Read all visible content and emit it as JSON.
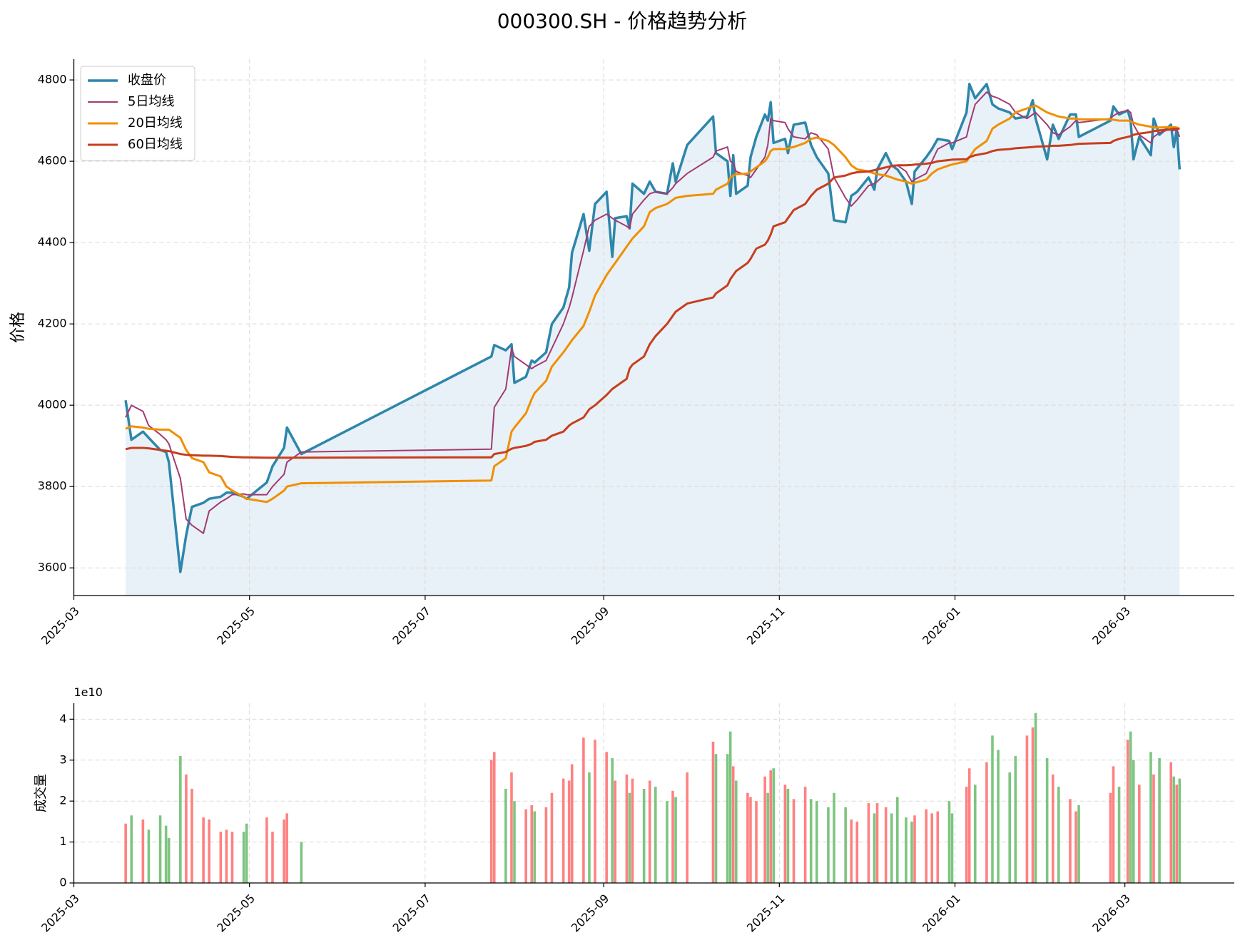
{
  "chart_data": [
    {
      "type": "line",
      "title": "000300.SH - 价格趋势分析",
      "ylabel": "价格",
      "x": [
        "2025-03-19",
        "2025-03-21",
        "2025-03-25",
        "2025-03-27",
        "2025-03-31",
        "2025-04-02",
        "2025-04-03",
        "2025-04-07",
        "2025-04-09",
        "2025-04-11",
        "2025-04-15",
        "2025-04-17",
        "2025-04-21",
        "2025-04-23",
        "2025-04-25",
        "2025-04-29",
        "2025-04-30",
        "2025-05-07",
        "2025-05-09",
        "2025-05-13",
        "2025-05-14",
        "2025-05-19",
        "2025-07-24",
        "2025-07-25",
        "2025-07-29",
        "2025-07-31",
        "2025-08-01",
        "2025-08-05",
        "2025-08-07",
        "2025-08-08",
        "2025-08-12",
        "2025-08-14",
        "2025-08-18",
        "2025-08-20",
        "2025-08-21",
        "2025-08-25",
        "2025-08-27",
        "2025-08-29",
        "2025-09-02",
        "2025-09-04",
        "2025-09-05",
        "2025-09-09",
        "2025-09-10",
        "2025-09-11",
        "2025-09-15",
        "2025-09-17",
        "2025-09-19",
        "2025-09-23",
        "2025-09-25",
        "2025-09-26",
        "2025-09-30",
        "2025-10-09",
        "2025-10-10",
        "2025-10-14",
        "2025-10-15",
        "2025-10-16",
        "2025-10-17",
        "2025-10-21",
        "2025-10-22",
        "2025-10-24",
        "2025-10-27",
        "2025-10-28",
        "2025-10-29",
        "2025-10-30",
        "2025-11-03",
        "2025-11-04",
        "2025-11-06",
        "2025-11-10",
        "2025-11-12",
        "2025-11-14",
        "2025-11-18",
        "2025-11-20",
        "2025-11-24",
        "2025-11-26",
        "2025-11-28",
        "2025-12-02",
        "2025-12-04",
        "2025-12-05",
        "2025-12-08",
        "2025-12-10",
        "2025-12-12",
        "2025-12-15",
        "2025-12-17",
        "2025-12-18",
        "2025-12-22",
        "2025-12-24",
        "2025-12-26",
        "2025-12-30",
        "2025-12-31",
        "2026-01-05",
        "2026-01-06",
        "2026-01-08",
        "2026-01-12",
        "2026-01-14",
        "2026-01-16",
        "2026-01-20",
        "2026-01-22",
        "2026-01-26",
        "2026-01-28",
        "2026-01-29",
        "2026-02-02",
        "2026-02-04",
        "2026-02-06",
        "2026-02-10",
        "2026-02-12",
        "2026-02-13",
        "2026-02-24",
        "2026-02-25",
        "2026-02-27",
        "2026-03-02",
        "2026-03-03",
        "2026-03-04",
        "2026-03-06",
        "2026-03-10",
        "2026-03-11",
        "2026-03-13",
        "2026-03-17",
        "2026-03-18",
        "2026-03-19",
        "2026-03-20"
      ],
      "series": [
        {
          "name": "收盘价",
          "color": "#2e86ab",
          "width": 3.5,
          "fill": "#e8f1f7",
          "values": [
            4012,
            3915,
            3935,
            3920,
            3890,
            3885,
            3860,
            3590,
            3680,
            3750,
            3760,
            3770,
            3775,
            3785,
            3785,
            3775,
            3770,
            3810,
            3850,
            3895,
            3945,
            3880,
            4120,
            4148,
            4135,
            4150,
            4055,
            4070,
            4110,
            4105,
            4130,
            4200,
            4240,
            4290,
            4375,
            4470,
            4380,
            4495,
            4525,
            4365,
            4460,
            4465,
            4435,
            4545,
            4520,
            4550,
            4525,
            4520,
            4595,
            4550,
            4640,
            4710,
            4620,
            4600,
            4515,
            4615,
            4520,
            4540,
            4610,
            4660,
            4715,
            4700,
            4745,
            4645,
            4655,
            4620,
            4690,
            4695,
            4640,
            4610,
            4570,
            4455,
            4450,
            4515,
            4525,
            4560,
            4530,
            4580,
            4620,
            4590,
            4580,
            4550,
            4495,
            4575,
            4610,
            4630,
            4655,
            4650,
            4630,
            4720,
            4790,
            4755,
            4790,
            4740,
            4730,
            4720,
            4705,
            4710,
            4750,
            4705,
            4605,
            4690,
            4655,
            4715,
            4715,
            4660,
            4700,
            4735,
            4715,
            4725,
            4700,
            4605,
            4660,
            4615,
            4705,
            4665,
            4690,
            4635,
            4680,
            4580
          ]
        },
        {
          "name": "5日均线",
          "color": "#a23b72",
          "width": 2,
          "values": [
            3970,
            4000,
            3985,
            3950,
            3928,
            3915,
            3905,
            3820,
            3720,
            3705,
            3685,
            3740,
            3762,
            3770,
            3780,
            3782,
            3780,
            3780,
            3800,
            3830,
            3860,
            3885,
            3892,
            3995,
            4040,
            4140,
            4120,
            4100,
            4090,
            4095,
            4110,
            4140,
            4200,
            4240,
            4265,
            4380,
            4440,
            4455,
            4470,
            4460,
            4455,
            4440,
            4435,
            4470,
            4505,
            4520,
            4525,
            4520,
            4535,
            4545,
            4570,
            4610,
            4625,
            4635,
            4600,
            4595,
            4575,
            4565,
            4560,
            4580,
            4610,
            4640,
            4705,
            4700,
            4695,
            4680,
            4660,
            4655,
            4670,
            4665,
            4630,
            4560,
            4510,
            4490,
            4505,
            4540,
            4545,
            4550,
            4570,
            4590,
            4590,
            4575,
            4550,
            4555,
            4570,
            4600,
            4630,
            4645,
            4645,
            4660,
            4690,
            4740,
            4770,
            4760,
            4755,
            4740,
            4720,
            4705,
            4715,
            4720,
            4690,
            4670,
            4665,
            4685,
            4700,
            4695,
            4705,
            4712,
            4720,
            4725,
            4720,
            4690,
            4665,
            4645,
            4660,
            4670,
            4680,
            4675,
            4680,
            4660
          ]
        },
        {
          "name": "20日均线",
          "color": "#f18f01",
          "width": 3,
          "values": [
            3942,
            3948,
            3945,
            3942,
            3940,
            3940,
            3940,
            3920,
            3890,
            3870,
            3860,
            3835,
            3825,
            3800,
            3790,
            3775,
            3770,
            3762,
            3770,
            3790,
            3800,
            3808,
            3815,
            3850,
            3870,
            3935,
            3945,
            3980,
            4015,
            4030,
            4060,
            4095,
            4130,
            4150,
            4160,
            4195,
            4230,
            4270,
            4320,
            4340,
            4350,
            4390,
            4400,
            4410,
            4440,
            4475,
            4485,
            4495,
            4505,
            4510,
            4515,
            4520,
            4530,
            4545,
            4560,
            4565,
            4568,
            4570,
            4575,
            4585,
            4600,
            4610,
            4625,
            4630,
            4630,
            4632,
            4635,
            4645,
            4655,
            4658,
            4650,
            4640,
            4610,
            4590,
            4580,
            4575,
            4570,
            4568,
            4565,
            4560,
            4555,
            4550,
            4545,
            4547,
            4555,
            4570,
            4580,
            4590,
            4592,
            4600,
            4610,
            4630,
            4650,
            4680,
            4690,
            4705,
            4720,
            4730,
            4735,
            4737,
            4720,
            4715,
            4710,
            4705,
            4705,
            4703,
            4703,
            4702,
            4700,
            4700,
            4698,
            4695,
            4690,
            4685,
            4683,
            4683,
            4684,
            4684,
            4683,
            4680
          ]
        },
        {
          "name": "60日均线",
          "color": "#c73e1d",
          "width": 3,
          "values": [
            3892,
            3895,
            3895,
            3894,
            3890,
            3888,
            3887,
            3880,
            3878,
            3877,
            3876,
            3876,
            3875,
            3874,
            3873,
            3872,
            3872,
            3871,
            3871,
            3871,
            3871,
            3871,
            3872,
            3880,
            3885,
            3893,
            3895,
            3900,
            3905,
            3910,
            3915,
            3925,
            3935,
            3950,
            3955,
            3970,
            3990,
            4000,
            4025,
            4040,
            4045,
            4065,
            4090,
            4100,
            4120,
            4150,
            4170,
            4200,
            4220,
            4230,
            4250,
            4265,
            4275,
            4295,
            4310,
            4320,
            4330,
            4350,
            4360,
            4385,
            4395,
            4405,
            4420,
            4440,
            4450,
            4460,
            4480,
            4495,
            4515,
            4530,
            4545,
            4560,
            4565,
            4570,
            4573,
            4575,
            4578,
            4580,
            4585,
            4588,
            4590,
            4590,
            4591,
            4592,
            4594,
            4596,
            4600,
            4603,
            4604,
            4605,
            4610,
            4615,
            4620,
            4625,
            4628,
            4630,
            4632,
            4634,
            4635,
            4636,
            4637,
            4638,
            4638,
            4640,
            4642,
            4643,
            4645,
            4650,
            4655,
            4660,
            4662,
            4665,
            4668,
            4672,
            4674,
            4676,
            4678,
            4680,
            4680,
            4680
          ]
        }
      ],
      "xlim": [
        "2025-03-01",
        "2026-04-08"
      ],
      "xticks": [
        {
          "value": "2025-03-01",
          "label": "2025-03"
        },
        {
          "value": "2025-05-01",
          "label": "2025-05"
        },
        {
          "value": "2025-07-01",
          "label": "2025-07"
        },
        {
          "value": "2025-09-01",
          "label": "2025-09"
        },
        {
          "value": "2025-11-01",
          "label": "2025-11"
        },
        {
          "value": "2026-01-01",
          "label": "2026-01"
        },
        {
          "value": "2026-03-01",
          "label": "2026-03"
        }
      ],
      "ylim": [
        3532,
        4851
      ],
      "yticks": [
        3600,
        3800,
        4000,
        4200,
        4400,
        4600,
        4800
      ],
      "grid": true,
      "legend": "upper left"
    },
    {
      "type": "bar",
      "ylabel": "成交量",
      "y_offset_label": "1e10",
      "up_color": "#ff6b6b",
      "down_color": "#66bb6a",
      "x": [
        "2025-03-19",
        "2025-03-21",
        "2025-03-25",
        "2025-03-27",
        "2025-03-31",
        "2025-04-02",
        "2025-04-03",
        "2025-04-07",
        "2025-04-09",
        "2025-04-11",
        "2025-04-15",
        "2025-04-17",
        "2025-04-21",
        "2025-04-23",
        "2025-04-25",
        "2025-04-29",
        "2025-04-30",
        "2025-05-07",
        "2025-05-09",
        "2025-05-13",
        "2025-05-14",
        "2025-05-19",
        "2025-07-24",
        "2025-07-25",
        "2025-07-29",
        "2025-07-31",
        "2025-08-01",
        "2025-08-05",
        "2025-08-07",
        "2025-08-08",
        "2025-08-12",
        "2025-08-14",
        "2025-08-18",
        "2025-08-20",
        "2025-08-21",
        "2025-08-25",
        "2025-08-27",
        "2025-08-29",
        "2025-09-02",
        "2025-09-04",
        "2025-09-05",
        "2025-09-09",
        "2025-09-10",
        "2025-09-11",
        "2025-09-15",
        "2025-09-17",
        "2025-09-19",
        "2025-09-23",
        "2025-09-25",
        "2025-09-26",
        "2025-09-30",
        "2025-10-09",
        "2025-10-10",
        "2025-10-14",
        "2025-10-15",
        "2025-10-16",
        "2025-10-17",
        "2025-10-21",
        "2025-10-22",
        "2025-10-24",
        "2025-10-27",
        "2025-10-28",
        "2025-10-29",
        "2025-10-30",
        "2025-11-03",
        "2025-11-04",
        "2025-11-06",
        "2025-11-10",
        "2025-11-12",
        "2025-11-14",
        "2025-11-18",
        "2025-11-20",
        "2025-11-24",
        "2025-11-26",
        "2025-11-28",
        "2025-12-02",
        "2025-12-04",
        "2025-12-05",
        "2025-12-08",
        "2025-12-10",
        "2025-12-12",
        "2025-12-15",
        "2025-12-17",
        "2025-12-18",
        "2025-12-22",
        "2025-12-24",
        "2025-12-26",
        "2025-12-30",
        "2025-12-31",
        "2026-01-05",
        "2026-01-06",
        "2026-01-08",
        "2026-01-12",
        "2026-01-14",
        "2026-01-16",
        "2026-01-20",
        "2026-01-22",
        "2026-01-26",
        "2026-01-28",
        "2026-01-29",
        "2026-02-02",
        "2026-02-04",
        "2026-02-06",
        "2026-02-10",
        "2026-02-12",
        "2026-02-13",
        "2026-02-24",
        "2026-02-25",
        "2026-02-27",
        "2026-03-02",
        "2026-03-03",
        "2026-03-04",
        "2026-03-06",
        "2026-03-10",
        "2026-03-11",
        "2026-03-13",
        "2026-03-17",
        "2026-03-18",
        "2026-03-19",
        "2026-03-20"
      ],
      "values": [
        1.45,
        1.65,
        1.55,
        1.3,
        1.65,
        1.4,
        1.1,
        3.1,
        2.65,
        2.3,
        1.6,
        1.55,
        1.25,
        1.3,
        1.25,
        1.25,
        1.45,
        1.6,
        1.25,
        1.55,
        1.7,
        1.0,
        3.0,
        3.2,
        2.3,
        2.7,
        2.0,
        1.8,
        1.9,
        1.75,
        1.85,
        2.2,
        2.55,
        2.5,
        2.9,
        3.55,
        2.7,
        3.5,
        3.2,
        3.05,
        2.5,
        2.65,
        2.2,
        2.55,
        2.3,
        2.5,
        2.35,
        2.0,
        2.25,
        2.1,
        2.7,
        3.45,
        3.15,
        3.15,
        3.7,
        2.85,
        2.5,
        2.2,
        2.1,
        2.0,
        2.6,
        2.2,
        2.75,
        2.8,
        2.4,
        2.3,
        2.05,
        2.35,
        2.05,
        2.0,
        1.85,
        2.2,
        1.85,
        1.55,
        1.5,
        1.95,
        1.7,
        1.95,
        1.85,
        1.7,
        2.1,
        1.6,
        1.5,
        1.65,
        1.8,
        1.7,
        1.75,
        2.0,
        1.7,
        2.35,
        2.8,
        2.4,
        2.95,
        3.6,
        3.25,
        2.7,
        3.1,
        3.6,
        3.8,
        4.15,
        3.05,
        2.65,
        2.35,
        2.05,
        1.75,
        1.9,
        2.2,
        2.85,
        2.35,
        3.5,
        3.7,
        3.0,
        2.4,
        3.2,
        2.65,
        3.05,
        2.95,
        2.6,
        2.4,
        2.55
      ],
      "xlim": [
        "2025-03-01",
        "2026-04-08"
      ],
      "xticks": [
        {
          "value": "2025-03-01",
          "label": "2025-03"
        },
        {
          "value": "2025-05-01",
          "label": "2025-05"
        },
        {
          "value": "2025-07-01",
          "label": "2025-07"
        },
        {
          "value": "2025-09-01",
          "label": "2025-09"
        },
        {
          "value": "2025-11-01",
          "label": "2025-11"
        },
        {
          "value": "2026-01-01",
          "label": "2026-01"
        },
        {
          "value": "2026-03-01",
          "label": "2026-03"
        }
      ],
      "ylim": [
        0,
        4.39
      ],
      "yticks": [
        0,
        1,
        2,
        3,
        4
      ],
      "grid": true
    }
  ]
}
